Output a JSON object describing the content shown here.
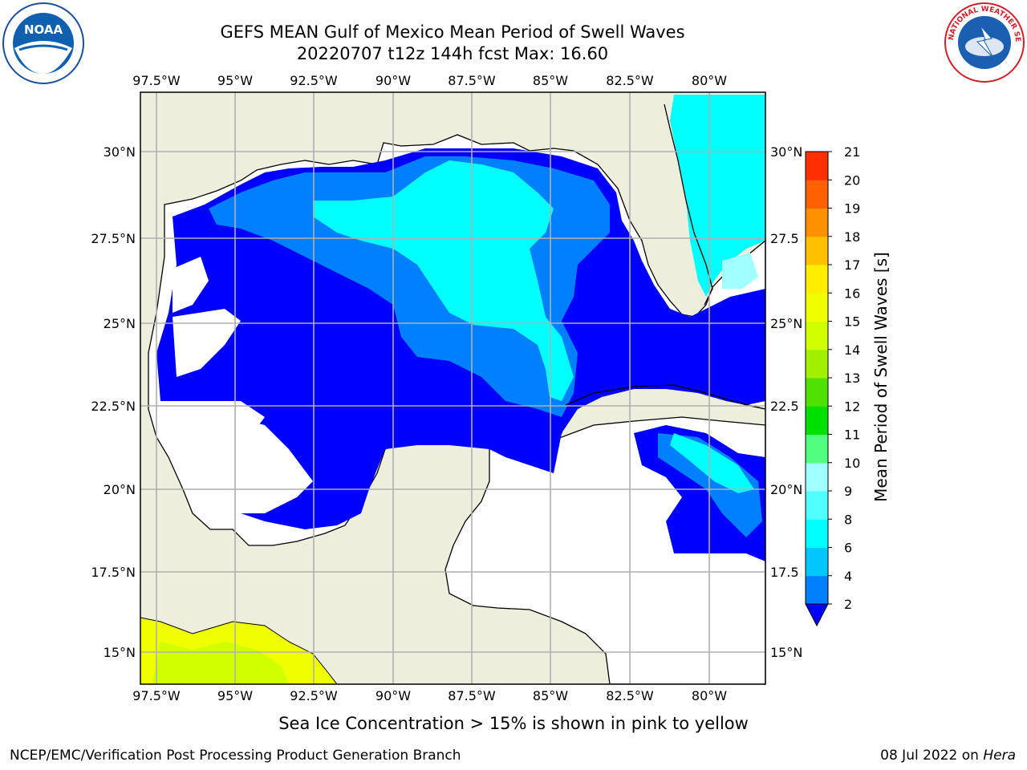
{
  "header": {
    "title_line1": "GEFS MEAN Gulf of Mexico Mean Period of Swell Waves",
    "title_line2": "20220707 t12z 144h fcst   Max: 16.60"
  },
  "map": {
    "lon_labels": [
      "97.5°W",
      "95°W",
      "92.5°W",
      "90°W",
      "87.5°W",
      "85°W",
      "82.5°W",
      "80°W"
    ],
    "lat_labels_left": [
      "30°N",
      "27.5°N",
      "25°N",
      "22.5°N",
      "20°N",
      "17.5°N",
      "15°N"
    ],
    "lat_labels_right": [
      "30°N",
      "27.5",
      "25°N",
      "22.5",
      "20°N",
      "17.5",
      "15°N"
    ],
    "colors": {
      "land": "#eeeedc",
      "ocean_no_data": "#ffffff",
      "grid": "#b0b0b0"
    }
  },
  "colorbar": {
    "label": "Mean Period of Swell Waves [s]",
    "tick_labels": [
      "2",
      "4",
      "6",
      "8",
      "9",
      "10",
      "11",
      "12",
      "13",
      "14",
      "15",
      "16",
      "17",
      "18",
      "19",
      "20",
      "21"
    ],
    "colors": [
      "#0000ff",
      "#0080ff",
      "#00c8ff",
      "#00ffff",
      "#50ffff",
      "#a0ffff",
      "#50ff80",
      "#00e000",
      "#50e000",
      "#a0f000",
      "#d0ff00",
      "#f0ff00",
      "#ffee00",
      "#ffc000",
      "#ff9000",
      "#ff6000",
      "#ff3000",
      "#ff0000"
    ]
  },
  "ice_note": "Sea Ice Concentration > 15% is shown in pink to yellow",
  "footer": {
    "left": "NCEP/EMC/Verification Post Processing Product Generation Branch",
    "right_date": "08 Jul 2022 on ",
    "right_machine": "Hera"
  },
  "logos": {
    "noaa_text": "NOAA",
    "nws_text": "NATIONAL WEATHER SERVICE"
  }
}
